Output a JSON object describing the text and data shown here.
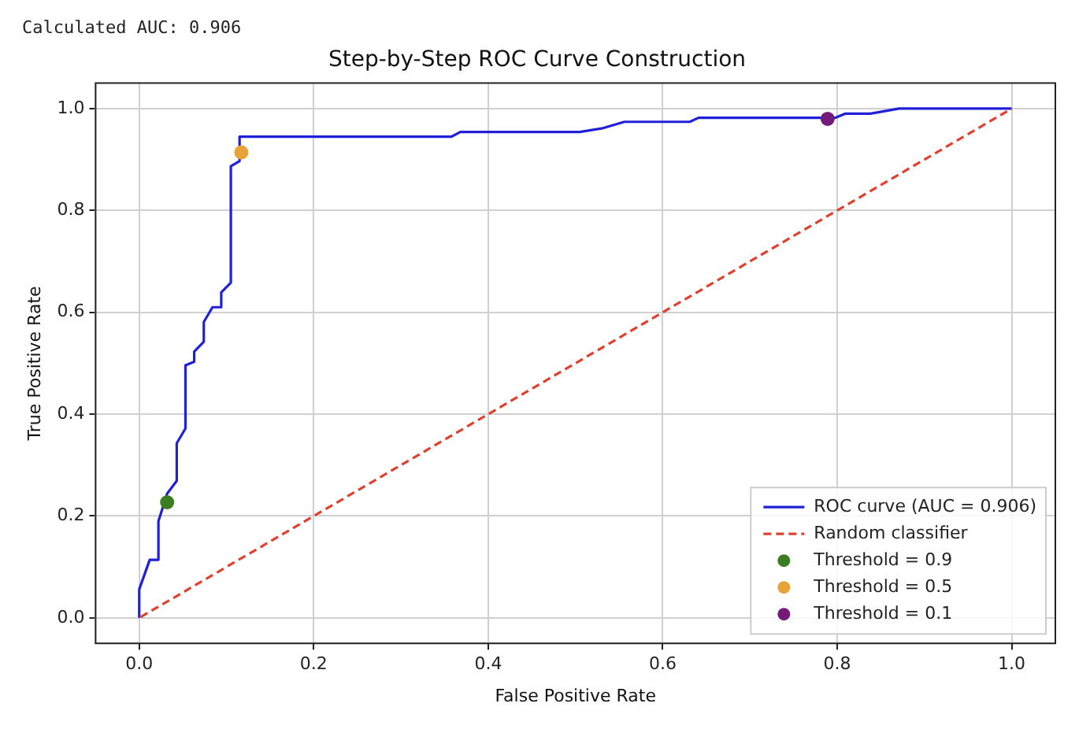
{
  "chart_data": {
    "type": "line",
    "title": "Step-by-Step ROC Curve Construction",
    "xlabel": "False Positive Rate",
    "ylabel": "True Positive Rate",
    "annotations": [
      "Calculated AUC: 0.906"
    ],
    "xlim": [
      -0.05,
      1.05
    ],
    "ylim": [
      -0.05,
      1.05
    ],
    "xticks": [
      {
        "value": 0,
        "label": "0.0"
      },
      {
        "value": 0.2,
        "label": "0.2"
      },
      {
        "value": 0.4,
        "label": "0.4"
      },
      {
        "value": 0.6,
        "label": "0.6"
      },
      {
        "value": 0.8,
        "label": "0.8"
      },
      {
        "value": 1,
        "label": "1.0"
      }
    ],
    "yticks": [
      {
        "value": 0,
        "label": "0.0"
      },
      {
        "value": 0.2,
        "label": "0.2"
      },
      {
        "value": 0.4,
        "label": "0.4"
      },
      {
        "value": 0.6,
        "label": "0.6"
      },
      {
        "value": 0.8,
        "label": "0.8"
      },
      {
        "value": 1,
        "label": "1.0"
      }
    ],
    "grid": true,
    "legend": "bottom right",
    "series": [
      {
        "name": "ROC curve (AUC = 0.906)",
        "color": "#2020d8",
        "marker": "none",
        "line_style": "solid",
        "x": [
          0,
          0,
          0.012,
          0.022,
          0.022,
          0.032,
          0.043,
          0.043,
          0.053,
          0.053,
          0.063,
          0.063,
          0.074,
          0.074,
          0.084,
          0.094,
          0.094,
          0.105,
          0.105,
          0.115,
          0.115,
          0.166,
          0.358,
          0.368,
          0.505,
          0.53,
          0.556,
          0.631,
          0.641,
          0.798,
          0.809,
          0.838,
          0.871,
          1
        ],
        "values": [
          0,
          0.056,
          0.114,
          0.114,
          0.19,
          0.244,
          0.269,
          0.343,
          0.372,
          0.496,
          0.503,
          0.523,
          0.542,
          0.581,
          0.61,
          0.61,
          0.639,
          0.658,
          0.887,
          0.897,
          0.945,
          0.945,
          0.945,
          0.954,
          0.954,
          0.961,
          0.974,
          0.974,
          0.982,
          0.982,
          0.99,
          0.99,
          1,
          1
        ]
      },
      {
        "name": "Random classifier",
        "color": "#e0402f",
        "marker": "none",
        "line_style": "dashed",
        "x": [
          0,
          1
        ],
        "values": [
          0,
          1
        ]
      },
      {
        "name": "Threshold = 0.9",
        "type": "scatter",
        "color": "#3a7d22",
        "marker": "circle",
        "x": [
          0.032
        ],
        "values": [
          0.227
        ]
      },
      {
        "name": "Threshold = 0.5",
        "type": "scatter",
        "color": "#e8a23a",
        "marker": "circle",
        "x": [
          0.117
        ],
        "values": [
          0.914
        ]
      },
      {
        "name": "Threshold = 0.1",
        "type": "scatter",
        "color": "#741a7a",
        "marker": "circle",
        "x": [
          0.789
        ],
        "values": [
          0.98
        ]
      }
    ]
  }
}
